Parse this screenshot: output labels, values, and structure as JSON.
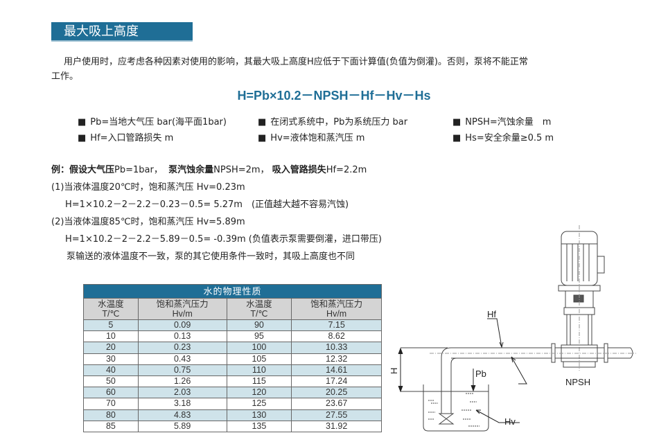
{
  "title": "最大吸上高度",
  "intro_line1": "用户使用时，应考虑各种因素对使用的影响，其最大吸上高度H应低于下面计算值(负值为倒灌)。否则，泵将不能正常",
  "intro_line2": "工作。",
  "formula": "H=Pb×10.2－NPSH－Hf－Hv－Hs",
  "legend": [
    "Pb=当地大气压 bar(海平面1bar)",
    "在闭式系统中，Pb为系统压力 bar",
    "NPSH=汽蚀余量　m",
    "Hf=入口管路损失 m",
    "Hv=液体饱和蒸汽压 m",
    "Hs=安全余量≥0.5 m"
  ],
  "example": {
    "l0_a": "例：假设大气压",
    "l0_b": "Pb=1bar，",
    "l0_c": "泵汽蚀余量",
    "l0_d": "NPSH=2m，",
    "l0_e": "吸入管路损失",
    "l0_f": "Hf=2.2m",
    "l1": "(1)当液体温度20℃时，饱和蒸汽压 Hv=0.23m",
    "l2": "H=1×10.2－2－2.2－0.23－0.5= 5.27m　(正值越大越不容易汽蚀)",
    "l3": "(2)当液体温度85℃时，饱和蒸汽压 Hv=5.89m",
    "l4": "H=1×10.2－2－2.2－5.89－0.5= -0.39m (负值表示泵需要倒灌，进口带压)",
    "l5": "泵输送的液体温度不一致，泵的其它使用条件一致时，其吸上高度也不同"
  },
  "table": {
    "caption": "水的物理性质",
    "headers": [
      [
        "水温度",
        "T/℃"
      ],
      [
        "饱和蒸汽压力",
        "Hv/m"
      ],
      [
        "水温度",
        "T/℃"
      ],
      [
        "饱和蒸汽压力",
        "Hv/m"
      ]
    ],
    "rows": [
      [
        "5",
        "0.09",
        "90",
        "7.15"
      ],
      [
        "10",
        "0.13",
        "95",
        "8.62"
      ],
      [
        "20",
        "0.23",
        "100",
        "10.33"
      ],
      [
        "30",
        "0.43",
        "105",
        "12.32"
      ],
      [
        "40",
        "0.75",
        "110",
        "14.61"
      ],
      [
        "50",
        "1.26",
        "115",
        "17.24"
      ],
      [
        "60",
        "2.03",
        "120",
        "20.25"
      ],
      [
        "70",
        "3.18",
        "125",
        "23.67"
      ],
      [
        "80",
        "4.83",
        "130",
        "27.55"
      ],
      [
        "85",
        "5.89",
        "135",
        "31.92"
      ]
    ]
  },
  "diagram": {
    "hf": "Hf",
    "h": "H",
    "pb": "Pb",
    "npsh": "NPSH",
    "hv": "Hv"
  },
  "colors": {
    "accent": "#1f6e96",
    "stripe": "#cfe3ea"
  }
}
